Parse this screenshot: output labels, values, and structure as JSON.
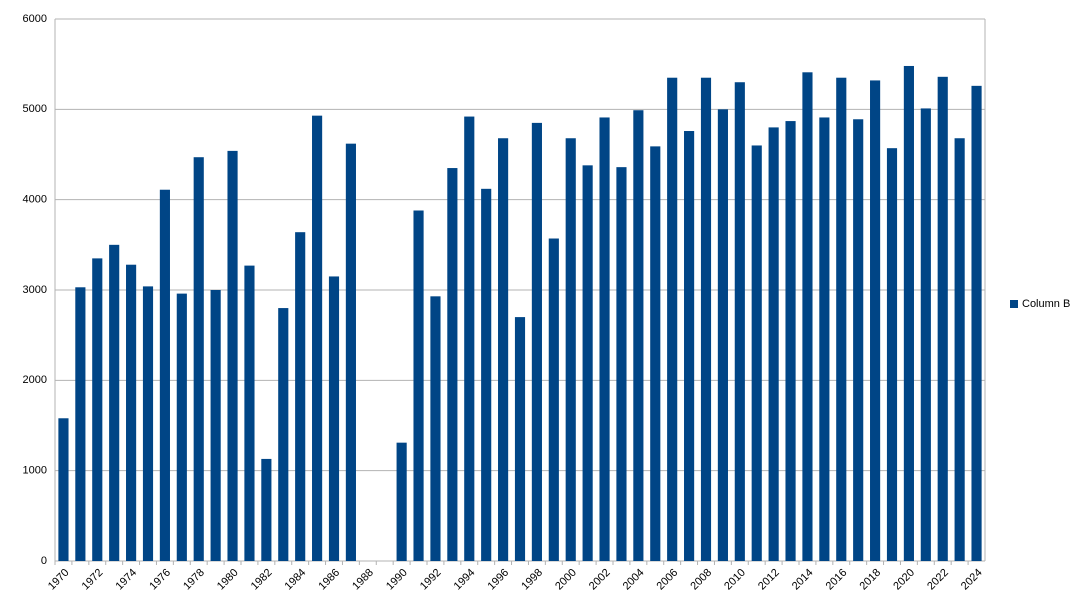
{
  "chart_data": {
    "type": "bar",
    "categories": [
      "1970",
      null,
      "1972",
      null,
      "1974",
      null,
      "1976",
      null,
      "1978",
      null,
      "1980",
      null,
      "1982",
      null,
      "1984",
      null,
      "1986",
      null,
      "1988",
      null,
      "1990",
      null,
      "1992",
      null,
      "1994",
      null,
      "1996",
      null,
      "1998",
      null,
      "2000",
      null,
      "2002",
      null,
      "2004",
      null,
      "2006",
      null,
      "2008",
      null,
      "2010",
      null,
      "2012",
      null,
      "2014",
      null,
      "2016",
      null,
      "2018",
      null,
      "2020",
      null,
      "2022",
      null,
      "2024"
    ],
    "series": [
      {
        "name": "Column B",
        "color": "#004586",
        "values": [
          1580,
          3030,
          3350,
          3500,
          3280,
          3040,
          4110,
          2960,
          4470,
          3000,
          4540,
          3270,
          1130,
          2800,
          3640,
          4930,
          3150,
          4620,
          null,
          null,
          1310,
          3880,
          2930,
          4350,
          4920,
          4120,
          4680,
          2700,
          4850,
          3570,
          4680,
          4380,
          4910,
          4360,
          4990,
          4590,
          5350,
          4760,
          5350,
          5000,
          5300,
          4600,
          4800,
          4870,
          5410,
          4910,
          5350,
          4890,
          5320,
          4570,
          5480,
          5010,
          5360,
          4680,
          5260
        ]
      }
    ],
    "ylim": [
      0,
      6000
    ],
    "yticks": [
      0,
      1000,
      2000,
      3000,
      4000,
      5000,
      6000
    ],
    "grid": true,
    "legend": "right"
  }
}
